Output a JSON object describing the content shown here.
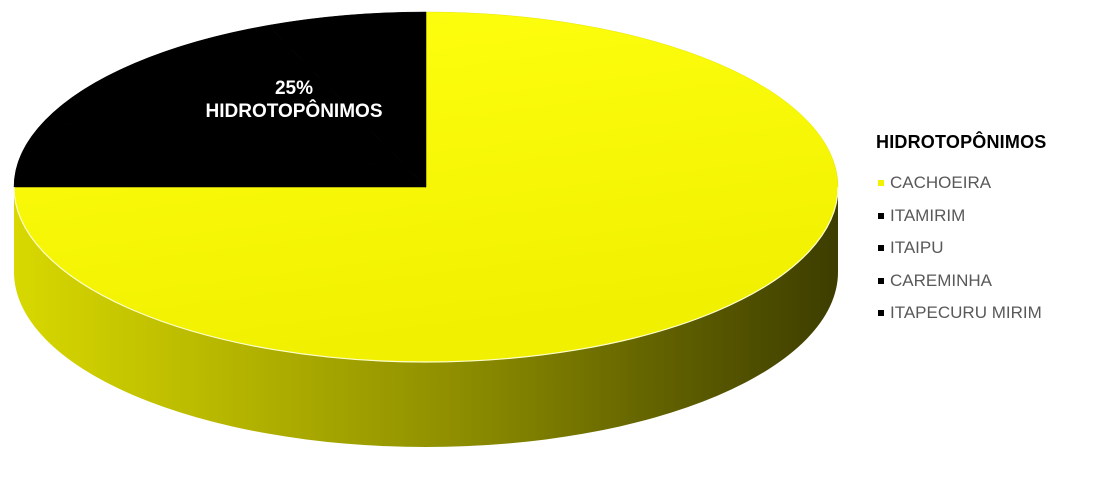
{
  "chart_data": {
    "type": "pie",
    "style": "3d",
    "series": [
      {
        "name": "HIDROTOPÔNIMOS",
        "categories": [
          "CACHOEIRA",
          "ITAMIRIM",
          "ITAIPU",
          "CAREMINHA",
          "ITAPECURU MIRIM"
        ],
        "values": [
          75,
          6.25,
          6.25,
          6.25,
          6.25
        ]
      }
    ],
    "slice_label": {
      "percent": "25%",
      "text": "HIDROTOPÔNIMOS"
    },
    "legend": {
      "title": "HIDROTOPÔNIMOS",
      "position": "right",
      "entries": [
        {
          "label": "CACHOEIRA",
          "color": "#f2f200"
        },
        {
          "label": "ITAMIRIM",
          "color": "#000000"
        },
        {
          "label": "ITAIPU",
          "color": "#000000"
        },
        {
          "label": "CAREMINHA",
          "color": "#000000"
        },
        {
          "label": "ITAPECURU MIRIM",
          "color": "#000000"
        }
      ]
    },
    "colors": {
      "main_slice": "#f2f200",
      "other_slices": "#000000"
    }
  }
}
